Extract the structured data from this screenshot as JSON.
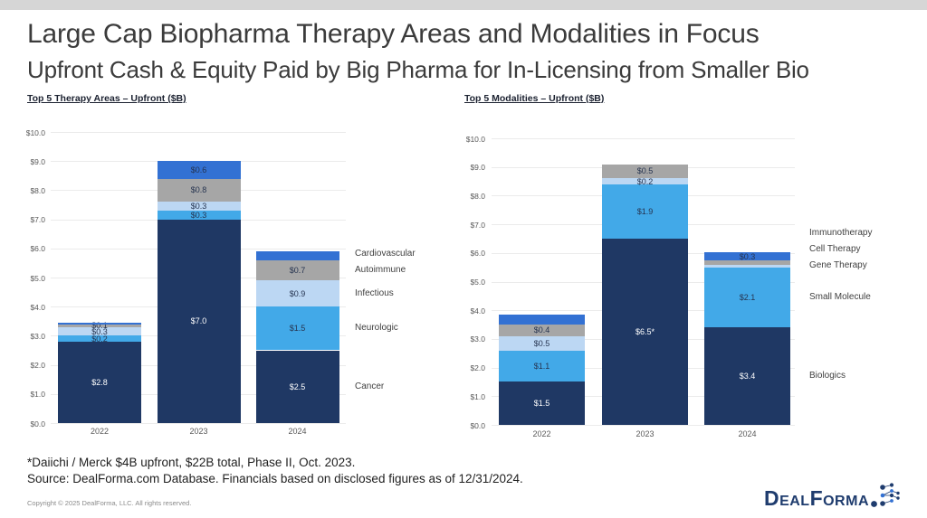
{
  "slide": {
    "title": "Large Cap Biopharma Therapy Areas and Modalities in Focus",
    "subtitle": "Upfront Cash & Equity Paid by Big Pharma for In-Licensing from Smaller Bio",
    "footnote": "*Daiichi / Merck $4B upfront, $22B total, Phase II, Oct. 2023.",
    "source": "Source: DealForma.com Database. Financials based on disclosed figures as of 12/31/2024.",
    "copyright": "Copyright © 2025 DealForma, LLC. All rights reserved.",
    "logo_text": "DealForma"
  },
  "colors": {
    "navy": "#1F3864",
    "sky": "#42A9E8",
    "pale_blue": "#BCD7F3",
    "gray": "#A6A6A6",
    "royal_blue": "#3371D3",
    "grid": "#EBEBEB",
    "axis_text": "#595959",
    "label_dark": "#263450",
    "label_light": "#FFFFFF"
  },
  "chart_data": [
    {
      "type": "bar",
      "stacked": true,
      "title": "Top 5 Therapy Areas – Upfront ($B)",
      "categories": [
        "2022",
        "2023",
        "2024"
      ],
      "series": [
        {
          "name": "Cancer",
          "color": "#1F3864",
          "values": [
            2.8,
            7.0,
            2.5
          ],
          "labels": [
            "$2.8",
            "$7.0",
            "$2.5"
          ]
        },
        {
          "name": "Neurologic",
          "color": "#42A9E8",
          "values": [
            0.2,
            0.3,
            1.5
          ],
          "labels": [
            "$0.2",
            "$0.3",
            "$1.5"
          ]
        },
        {
          "name": "Infectious",
          "color": "#BCD7F3",
          "values": [
            0.3,
            0.3,
            0.9
          ],
          "labels": [
            "$0.3",
            "$0.3",
            "$0.9"
          ]
        },
        {
          "name": "Autoimmune",
          "color": "#A6A6A6",
          "values": [
            0.1,
            0.8,
            0.7
          ],
          "labels": [
            "$0.1",
            "$0.8",
            "$0.7"
          ]
        },
        {
          "name": "Cardiovascular",
          "color": "#3371D3",
          "values": [
            0.05,
            0.6,
            0.3
          ],
          "labels": [
            "",
            "$0.6",
            ""
          ]
        }
      ],
      "ylim": [
        0,
        10
      ],
      "yticks": [
        "$0.0",
        "$1.0",
        "$2.0",
        "$3.0",
        "$4.0",
        "$5.0",
        "$6.0",
        "$7.0",
        "$8.0",
        "$9.0",
        "$10.0"
      ],
      "grid": true,
      "legend_position": "right"
    },
    {
      "type": "bar",
      "stacked": true,
      "title": "Top 5 Modalities – Upfront ($B)",
      "categories": [
        "2022",
        "2023",
        "2024"
      ],
      "series": [
        {
          "name": "Biologics",
          "color": "#1F3864",
          "values": [
            1.5,
            6.5,
            3.4
          ],
          "labels": [
            "$1.5",
            "$6.5*",
            "$3.4"
          ]
        },
        {
          "name": "Small Molecule",
          "color": "#42A9E8",
          "values": [
            1.1,
            1.9,
            2.1
          ],
          "labels": [
            "$1.1",
            "$1.9",
            "$2.1"
          ]
        },
        {
          "name": "Gene Therapy",
          "color": "#BCD7F3",
          "values": [
            0.5,
            0.2,
            0.08
          ],
          "labels": [
            "$0.5",
            "$0.2",
            ""
          ]
        },
        {
          "name": "Cell Therapy",
          "color": "#A6A6A6",
          "values": [
            0.4,
            0.5,
            0.15
          ],
          "labels": [
            "$0.4",
            "$0.5",
            ""
          ]
        },
        {
          "name": "Immunotherapy",
          "color": "#3371D3",
          "values": [
            0.35,
            0,
            0.3
          ],
          "labels": [
            "",
            "",
            "$0.3"
          ]
        }
      ],
      "ylim": [
        0,
        10
      ],
      "yticks": [
        "$0.0",
        "$1.0",
        "$2.0",
        "$3.0",
        "$4.0",
        "$5.0",
        "$6.0",
        "$7.0",
        "$8.0",
        "$9.0",
        "$10.0"
      ],
      "grid": true,
      "legend_position": "right"
    }
  ]
}
